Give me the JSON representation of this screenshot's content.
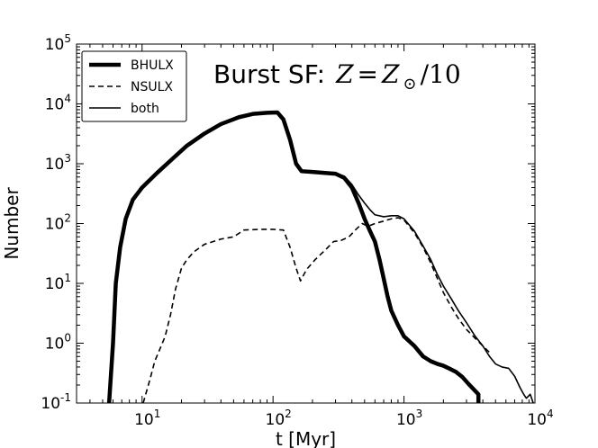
{
  "chart_data": {
    "type": "line",
    "title": {
      "prefix": "Burst SF:",
      "var": "Z",
      "eq": "=",
      "rhs": "Z",
      "sub": "⊙",
      "tail": "/10"
    },
    "xlabel": "t [Myr]",
    "ylabel": "Number",
    "xscale": "log",
    "yscale": "log",
    "xlim": [
      3.16,
      10000
    ],
    "ylim": [
      0.1,
      100000
    ],
    "grid": false,
    "legend_position": "top-left",
    "x_ticks": [
      {
        "base": "10",
        "exp": "1",
        "value": 10
      },
      {
        "base": "10",
        "exp": "2",
        "value": 100
      },
      {
        "base": "10",
        "exp": "3",
        "value": 1000
      },
      {
        "base": "10",
        "exp": "4",
        "value": 10000
      }
    ],
    "y_ticks": [
      {
        "base": "10",
        "exp": "-1",
        "value": 0.1
      },
      {
        "base": "10",
        "exp": "0",
        "value": 1
      },
      {
        "base": "10",
        "exp": "1",
        "value": 10
      },
      {
        "base": "10",
        "exp": "2",
        "value": 100
      },
      {
        "base": "10",
        "exp": "3",
        "value": 1000
      },
      {
        "base": "10",
        "exp": "4",
        "value": 10000
      },
      {
        "base": "10",
        "exp": "5",
        "value": 100000
      }
    ],
    "series": [
      {
        "name": "BHULX",
        "style": "thick-solid",
        "points": [
          [
            5.6,
            0.1
          ],
          [
            6.0,
            1.0
          ],
          [
            6.3,
            10
          ],
          [
            6.8,
            40
          ],
          [
            7.5,
            120
          ],
          [
            8.5,
            250
          ],
          [
            10,
            400
          ],
          [
            13,
            700
          ],
          [
            17,
            1200
          ],
          [
            22,
            2000
          ],
          [
            30,
            3200
          ],
          [
            40,
            4600
          ],
          [
            55,
            6000
          ],
          [
            70,
            6800
          ],
          [
            90,
            7100
          ],
          [
            108,
            7200
          ],
          [
            120,
            5500
          ],
          [
            135,
            2500
          ],
          [
            150,
            1000
          ],
          [
            165,
            750
          ],
          [
            200,
            730
          ],
          [
            250,
            700
          ],
          [
            300,
            680
          ],
          [
            350,
            580
          ],
          [
            400,
            400
          ],
          [
            450,
            220
          ],
          [
            500,
            120
          ],
          [
            550,
            75
          ],
          [
            600,
            50
          ],
          [
            650,
            25
          ],
          [
            700,
            12
          ],
          [
            750,
            6
          ],
          [
            800,
            3.5
          ],
          [
            900,
            2.0
          ],
          [
            1000,
            1.3
          ],
          [
            1200,
            0.9
          ],
          [
            1400,
            0.6
          ],
          [
            1600,
            0.5
          ],
          [
            1800,
            0.45
          ],
          [
            2000,
            0.42
          ],
          [
            2200,
            0.38
          ],
          [
            2500,
            0.33
          ],
          [
            2800,
            0.27
          ],
          [
            3100,
            0.21
          ],
          [
            3400,
            0.17
          ],
          [
            3700,
            0.14
          ],
          [
            3700,
            0.1
          ]
        ]
      },
      {
        "name": "NSULX",
        "style": "dashed",
        "points": [
          [
            10.2,
            0.1
          ],
          [
            11.5,
            0.25
          ],
          [
            12.5,
            0.5
          ],
          [
            14,
            0.9
          ],
          [
            15,
            1.3
          ],
          [
            16.5,
            3
          ],
          [
            18,
            8
          ],
          [
            20,
            18
          ],
          [
            22,
            25
          ],
          [
            25,
            34
          ],
          [
            30,
            45
          ],
          [
            40,
            55
          ],
          [
            50,
            60
          ],
          [
            60,
            78
          ],
          [
            80,
            80
          ],
          [
            100,
            80
          ],
          [
            120,
            78
          ],
          [
            135,
            40
          ],
          [
            150,
            18
          ],
          [
            162,
            11
          ],
          [
            180,
            17
          ],
          [
            210,
            25
          ],
          [
            250,
            36
          ],
          [
            290,
            50
          ],
          [
            330,
            52
          ],
          [
            380,
            60
          ],
          [
            430,
            80
          ],
          [
            480,
            100
          ],
          [
            530,
            90
          ],
          [
            600,
            100
          ],
          [
            700,
            110
          ],
          [
            800,
            120
          ],
          [
            900,
            125
          ],
          [
            1000,
            115
          ],
          [
            1200,
            70
          ],
          [
            1400,
            40
          ],
          [
            1600,
            22
          ],
          [
            1800,
            12
          ],
          [
            2000,
            7
          ],
          [
            2300,
            4
          ],
          [
            2600,
            2.6
          ],
          [
            3000,
            1.7
          ],
          [
            3500,
            1.2
          ],
          [
            4000,
            0.9
          ],
          [
            4500,
            0.7
          ]
        ]
      },
      {
        "name": "both",
        "style": "thin-solid",
        "points": [
          [
            5.6,
            0.1
          ],
          [
            6.0,
            1.0
          ],
          [
            6.3,
            10
          ],
          [
            6.8,
            40
          ],
          [
            7.5,
            120
          ],
          [
            8.5,
            250
          ],
          [
            10,
            400
          ],
          [
            13,
            700
          ],
          [
            17,
            1200
          ],
          [
            22,
            2000
          ],
          [
            30,
            3200
          ],
          [
            40,
            4600
          ],
          [
            55,
            6000
          ],
          [
            70,
            6800
          ],
          [
            90,
            7150
          ],
          [
            108,
            7250
          ],
          [
            120,
            5600
          ],
          [
            135,
            2550
          ],
          [
            150,
            1030
          ],
          [
            165,
            770
          ],
          [
            200,
            750
          ],
          [
            250,
            720
          ],
          [
            300,
            700
          ],
          [
            350,
            620
          ],
          [
            400,
            450
          ],
          [
            450,
            300
          ],
          [
            500,
            220
          ],
          [
            550,
            170
          ],
          [
            600,
            140
          ],
          [
            700,
            130
          ],
          [
            800,
            135
          ],
          [
            900,
            135
          ],
          [
            1000,
            120
          ],
          [
            1200,
            75
          ],
          [
            1400,
            42
          ],
          [
            1600,
            25
          ],
          [
            1800,
            14
          ],
          [
            2000,
            9
          ],
          [
            2300,
            5.5
          ],
          [
            2600,
            3.5
          ],
          [
            3000,
            2.2
          ],
          [
            3500,
            1.3
          ],
          [
            4000,
            0.9
          ],
          [
            4500,
            0.6
          ],
          [
            5000,
            0.45
          ],
          [
            5600,
            0.4
          ],
          [
            6300,
            0.38
          ],
          [
            7000,
            0.28
          ],
          [
            7700,
            0.18
          ],
          [
            8200,
            0.14
          ],
          [
            8600,
            0.12
          ],
          [
            9200,
            0.14
          ],
          [
            9700,
            0.1
          ]
        ]
      }
    ]
  }
}
